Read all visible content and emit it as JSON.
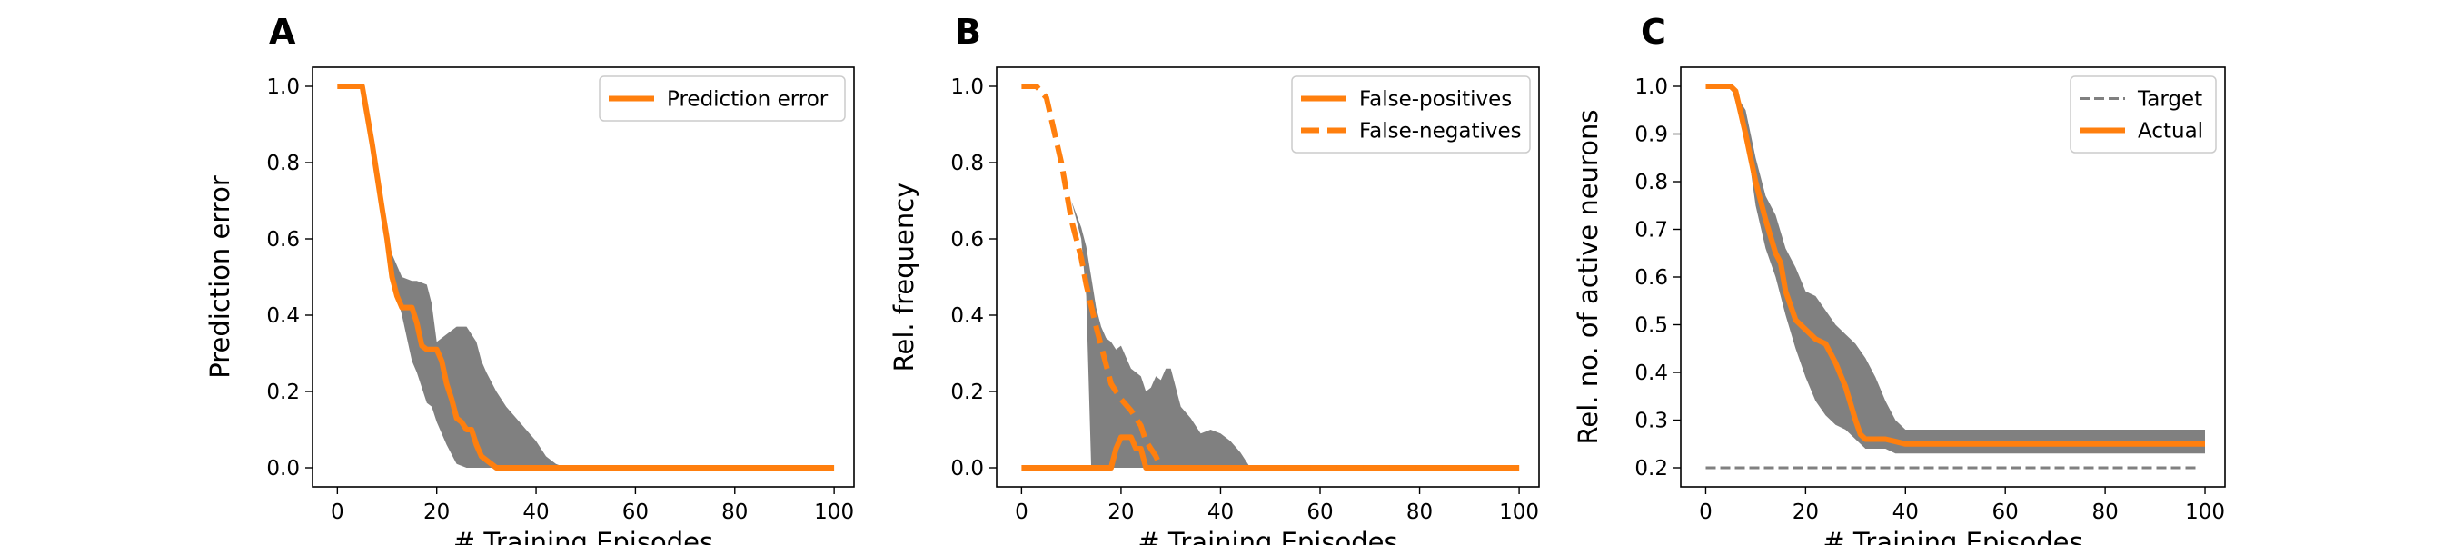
{
  "figure": {
    "colors": {
      "series": "#ff7f0e",
      "band": "#808080",
      "target": "#808080",
      "axes": "#000000"
    }
  },
  "chart_data": [
    {
      "type": "line",
      "panel_label": "A",
      "xlabel": "# Training Episodes",
      "ylabel": "Prediction error",
      "xlim": [
        -5,
        104
      ],
      "ylim": [
        -0.05,
        1.05
      ],
      "xticks": [
        0,
        20,
        40,
        60,
        80,
        100
      ],
      "xtick_labels": [
        "0",
        "20",
        "40",
        "60",
        "80",
        "100"
      ],
      "yticks": [
        0.0,
        0.2,
        0.4,
        0.6,
        0.8,
        1.0
      ],
      "ytick_labels": [
        "0.0",
        "0.2",
        "0.4",
        "0.6",
        "0.8",
        "1.0"
      ],
      "grid": false,
      "legend_position": "top-right",
      "legend": [
        "Prediction error"
      ],
      "band": {
        "x": [
          0,
          5,
          8,
          10,
          11,
          13,
          15,
          16,
          18,
          19,
          20,
          22,
          24,
          26,
          28,
          29,
          30,
          32,
          34,
          36,
          38,
          40,
          41,
          42,
          44,
          46,
          100
        ],
        "upper": [
          1.0,
          1.0,
          0.78,
          0.62,
          0.56,
          0.5,
          0.49,
          0.49,
          0.48,
          0.43,
          0.33,
          0.35,
          0.37,
          0.37,
          0.33,
          0.28,
          0.25,
          0.2,
          0.16,
          0.13,
          0.1,
          0.07,
          0.05,
          0.03,
          0.01,
          0.0,
          0.0
        ],
        "lower": [
          1.0,
          1.0,
          0.78,
          0.62,
          0.5,
          0.4,
          0.28,
          0.25,
          0.17,
          0.16,
          0.12,
          0.06,
          0.01,
          0.0,
          0.0,
          0.0,
          0.0,
          0.0,
          0.0,
          0.0,
          0.0,
          0.0,
          0.0,
          0.0,
          0.0,
          0.0,
          0.0
        ]
      },
      "series": [
        {
          "name": "Prediction error",
          "style": "solid",
          "x": [
            0,
            5,
            7,
            9,
            10,
            11,
            12,
            13,
            15,
            16,
            17,
            18,
            20,
            21,
            22,
            23,
            24,
            25,
            26,
            27,
            28,
            29,
            30,
            31,
            32,
            100
          ],
          "y": [
            1.0,
            1.0,
            0.85,
            0.68,
            0.6,
            0.5,
            0.45,
            0.42,
            0.42,
            0.38,
            0.32,
            0.31,
            0.31,
            0.28,
            0.22,
            0.18,
            0.13,
            0.12,
            0.1,
            0.1,
            0.06,
            0.03,
            0.02,
            0.01,
            0.0,
            0.0
          ]
        }
      ]
    },
    {
      "type": "line",
      "panel_label": "B",
      "xlabel": "# Training Episodes",
      "ylabel": "Rel. frequency",
      "xlim": [
        -5,
        104
      ],
      "ylim": [
        -0.05,
        1.05
      ],
      "xticks": [
        0,
        20,
        40,
        60,
        80,
        100
      ],
      "xtick_labels": [
        "0",
        "20",
        "40",
        "60",
        "80",
        "100"
      ],
      "yticks": [
        0.0,
        0.2,
        0.4,
        0.6,
        0.8,
        1.0
      ],
      "ytick_labels": [
        "0.0",
        "0.2",
        "0.4",
        "0.6",
        "0.8",
        "1.0"
      ],
      "grid": false,
      "legend_position": "top-right",
      "legend": [
        "False-positives",
        "False-negatives"
      ],
      "band": {
        "x": [
          0,
          3,
          5,
          8,
          10,
          12,
          13,
          14,
          15,
          16,
          17,
          18,
          19,
          20,
          21,
          22,
          24,
          25,
          26,
          27,
          28,
          29,
          30,
          32,
          34,
          36,
          38,
          40,
          42,
          44,
          46,
          100
        ],
        "upper": [
          1.0,
          1.0,
          0.97,
          0.85,
          0.7,
          0.63,
          0.58,
          0.5,
          0.42,
          0.37,
          0.34,
          0.33,
          0.31,
          0.32,
          0.29,
          0.26,
          0.24,
          0.2,
          0.21,
          0.24,
          0.23,
          0.26,
          0.26,
          0.16,
          0.13,
          0.09,
          0.1,
          0.09,
          0.07,
          0.04,
          0.0,
          0.0
        ],
        "lower": [
          1.0,
          1.0,
          0.97,
          0.85,
          0.7,
          0.6,
          0.45,
          0.0,
          0.0,
          0.0,
          0.0,
          0.0,
          0.0,
          0.0,
          0.0,
          0.0,
          0.0,
          0.0,
          0.0,
          0.0,
          0.0,
          0.0,
          0.0,
          0.0,
          0.0,
          0.0,
          0.0,
          0.0,
          0.0,
          0.0,
          0.0,
          0.0
        ]
      },
      "series": [
        {
          "name": "False-positives",
          "style": "solid",
          "x": [
            0,
            18,
            19,
            20,
            21,
            22,
            23,
            24,
            25,
            100
          ],
          "y": [
            0.0,
            0.0,
            0.05,
            0.08,
            0.08,
            0.08,
            0.05,
            0.05,
            0.0,
            0.0
          ]
        },
        {
          "name": "False-negatives",
          "style": "dashed",
          "x": [
            0,
            3,
            5,
            8,
            10,
            12,
            13,
            15,
            17,
            18,
            19,
            20,
            22,
            24,
            25,
            27,
            28,
            100
          ],
          "y": [
            1.0,
            1.0,
            0.97,
            0.8,
            0.65,
            0.55,
            0.48,
            0.37,
            0.27,
            0.22,
            0.2,
            0.18,
            0.15,
            0.11,
            0.07,
            0.03,
            0.0,
            0.0
          ]
        }
      ]
    },
    {
      "type": "line",
      "panel_label": "C",
      "xlabel": "# Training Episodes",
      "ylabel": "Rel. no. of active neurons",
      "xlim": [
        -5,
        104
      ],
      "ylim": [
        0.16,
        1.04
      ],
      "xticks": [
        0,
        20,
        40,
        60,
        80,
        100
      ],
      "xtick_labels": [
        "0",
        "20",
        "40",
        "60",
        "80",
        "100"
      ],
      "yticks": [
        0.2,
        0.3,
        0.4,
        0.5,
        0.6,
        0.7,
        0.8,
        0.9,
        1.0
      ],
      "ytick_labels": [
        "0.2",
        "0.3",
        "0.4",
        "0.5",
        "0.6",
        "0.7",
        "0.8",
        "0.9",
        "1.0"
      ],
      "grid": false,
      "legend_position": "top-right",
      "legend": [
        "Target",
        "Actual"
      ],
      "band": {
        "x": [
          0,
          5,
          8,
          10,
          12,
          14,
          16,
          18,
          20,
          22,
          24,
          26,
          28,
          30,
          32,
          34,
          36,
          38,
          40,
          42,
          100
        ],
        "upper": [
          1.0,
          1.0,
          0.95,
          0.85,
          0.77,
          0.73,
          0.66,
          0.62,
          0.57,
          0.56,
          0.53,
          0.5,
          0.48,
          0.46,
          0.43,
          0.39,
          0.34,
          0.3,
          0.28,
          0.28,
          0.28
        ],
        "lower": [
          1.0,
          1.0,
          0.9,
          0.75,
          0.66,
          0.6,
          0.52,
          0.45,
          0.39,
          0.34,
          0.31,
          0.29,
          0.28,
          0.26,
          0.24,
          0.24,
          0.24,
          0.23,
          0.23,
          0.23,
          0.23
        ]
      },
      "series": [
        {
          "name": "Target",
          "style": "dashed",
          "x": [
            0,
            99
          ],
          "y": [
            0.2,
            0.2
          ]
        },
        {
          "name": "Actual",
          "style": "solid",
          "x": [
            0,
            5,
            6,
            8,
            10,
            12,
            14,
            15,
            16,
            18,
            20,
            22,
            24,
            26,
            28,
            30,
            31,
            32,
            34,
            36,
            38,
            40,
            42,
            100
          ],
          "y": [
            1.0,
            1.0,
            0.99,
            0.9,
            0.8,
            0.72,
            0.65,
            0.63,
            0.57,
            0.51,
            0.49,
            0.47,
            0.46,
            0.42,
            0.37,
            0.3,
            0.27,
            0.26,
            0.26,
            0.26,
            0.255,
            0.25,
            0.25,
            0.25
          ]
        }
      ]
    }
  ]
}
